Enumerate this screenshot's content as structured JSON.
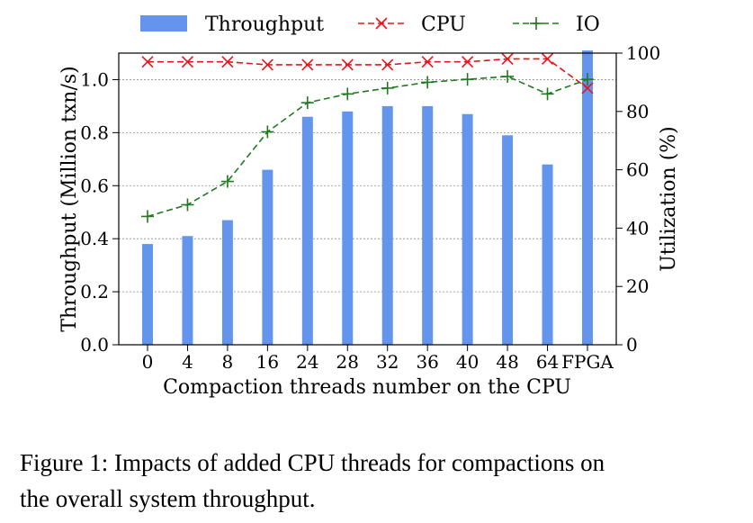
{
  "chart_data": {
    "type": "bar",
    "categories": [
      "0",
      "4",
      "8",
      "16",
      "24",
      "28",
      "32",
      "36",
      "40",
      "48",
      "64",
      "FPGA"
    ],
    "series": [
      {
        "name": "Throughput",
        "kind": "bar",
        "axis": "left",
        "color": "#6495ED",
        "values": [
          0.38,
          0.41,
          0.47,
          0.66,
          0.86,
          0.88,
          0.9,
          0.9,
          0.87,
          0.79,
          0.68,
          1.11
        ]
      },
      {
        "name": "CPU",
        "kind": "line",
        "axis": "right",
        "color": "#E8141B",
        "marker": "x",
        "dash": "dashed",
        "values": [
          97,
          97,
          97,
          96,
          96,
          96,
          96,
          97,
          97,
          98,
          98,
          88
        ]
      },
      {
        "name": "IO",
        "kind": "line",
        "axis": "right",
        "color": "#1F7A1F",
        "marker": "+",
        "dash": "dashed",
        "values": [
          44,
          48,
          56,
          73,
          83,
          86,
          88,
          90,
          91,
          92,
          86,
          91
        ]
      }
    ],
    "xlabel": "Compaction threads number on the CPU",
    "ylabel": "Throughput (Million txn/s)",
    "y2label": "Utilization (%)",
    "ylim": [
      0,
      1.1
    ],
    "y2lim": [
      0,
      100
    ],
    "yticks": [
      "0.0",
      "0.2",
      "0.4",
      "0.6",
      "0.8",
      "1.0"
    ],
    "y2ticks": [
      "0",
      "20",
      "40",
      "60",
      "80",
      "100"
    ],
    "grid": true,
    "legend_position": "top"
  },
  "caption": {
    "line1": "Figure 1: Impacts of added CPU threads for compactions on",
    "line2": "the overall system throughput."
  }
}
